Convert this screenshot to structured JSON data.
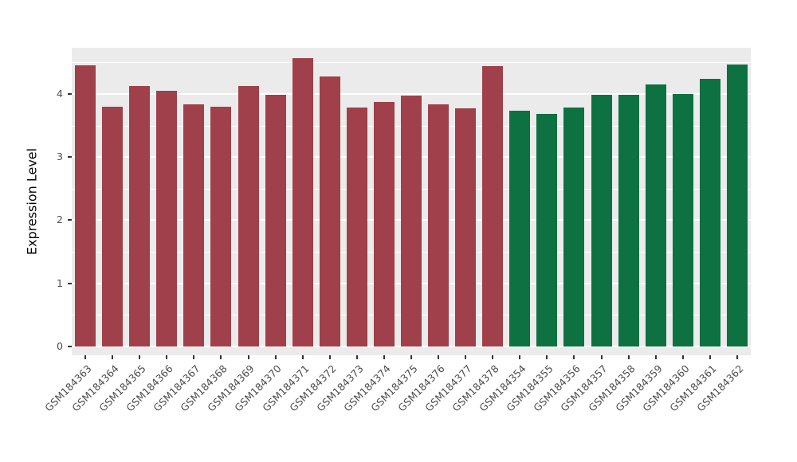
{
  "chart_data": {
    "type": "bar",
    "title": "",
    "xlabel": "",
    "ylabel": "Expression Level",
    "ylim": [
      0,
      4.73
    ],
    "yticks": [
      0,
      1,
      2,
      3,
      4
    ],
    "yticks_minor": [
      0.5,
      1.5,
      2.5,
      3.5,
      4.5
    ],
    "grid": true,
    "legend": "none",
    "panel_bg": "#EBEBEB",
    "grid_color": "#FFFFFF",
    "palette": {
      "groupA": "#A0404A",
      "groupB": "#0D7141"
    },
    "categories": [
      "GSM184363",
      "GSM184364",
      "GSM184365",
      "GSM184366",
      "GSM184367",
      "GSM184368",
      "GSM184369",
      "GSM184370",
      "GSM184371",
      "GSM184372",
      "GSM184373",
      "GSM184374",
      "GSM184375",
      "GSM184376",
      "GSM184377",
      "GSM184378",
      "GSM184354",
      "GSM184355",
      "GSM184356",
      "GSM184357",
      "GSM184358",
      "GSM184359",
      "GSM184360",
      "GSM184361",
      "GSM184362"
    ],
    "values": [
      4.45,
      3.8,
      4.12,
      4.05,
      3.84,
      3.8,
      4.12,
      3.99,
      4.57,
      4.27,
      3.79,
      3.87,
      3.97,
      3.84,
      3.77,
      4.44,
      3.73,
      3.68,
      3.78,
      3.99,
      3.99,
      4.15,
      4.0,
      4.24,
      4.47
    ],
    "bar_groups": [
      "groupA",
      "groupA",
      "groupA",
      "groupA",
      "groupA",
      "groupA",
      "groupA",
      "groupA",
      "groupA",
      "groupA",
      "groupA",
      "groupA",
      "groupA",
      "groupA",
      "groupA",
      "groupA",
      "groupB",
      "groupB",
      "groupB",
      "groupB",
      "groupB",
      "groupB",
      "groupB",
      "groupB",
      "groupB"
    ]
  }
}
